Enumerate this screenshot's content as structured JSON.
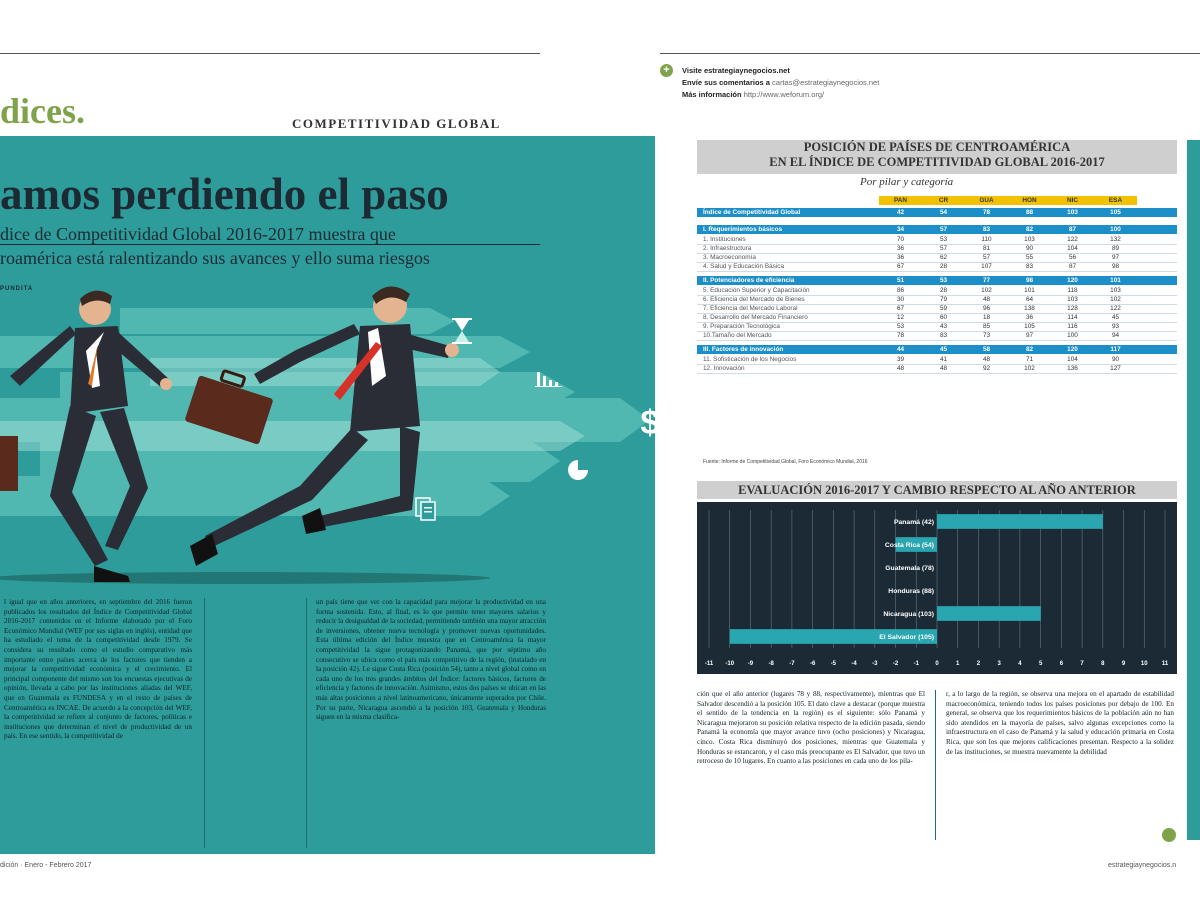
{
  "left_page": {
    "section_word": "dices.",
    "section_label": "COMPETITIVIDAD GLOBAL",
    "headline": "amos perdiendo el paso",
    "deck_line1": "dice de Competitividad Global 2016-2017 muestra que",
    "deck_line2": "roamérica está ralentizando sus avances y ello suma riesgos",
    "byline": "PUNDITA",
    "col1": "l igual que en años anteriores, en septiembre del 2016 fueron publicados los resultados del Índice de Competitividad Global 2016-2017 contenidos en el Informe elaborado por el Foro Económico Mundial (WEF por sus siglas en inglés), entidad que ha estudiado el tema de la competitividad desde 1979. Se considera su resultado como el estudio comparativo más importante entre países acerca de los factores que tienden a mejorar la competitividad económica y el crecimiento. El principal componente del mismo son los encuestas ejecutivas de opinión, llevada a cabo por las instituciones aliadas del WEF, que en Guatemala es FUNDESA y en el resto de países de Centroamérica es INCAE. De acuerdo a la concepción del WEF, la competitividad se refiere al conjunto de factores, políticas e instituciones que determinan el nivel de productividad de un país. En ese sentido, la competitividad de",
    "col2": "un país tiene que ver con la capacidad para mejorar la productividad en una forma sostenida. Esto, al final, es lo que permite tener mayores salarios y reducir la desigualdad de la sociedad, permitiendo también una mayor atracción de inversiones, obtener nueva tecnología y promover nuevas oportunidades. Esta última edición del Índice muestra que en Centroamérica la mayor competitividad la sigue protagonizando Panamá, que por séptimo año consecutivo se ubica como el país más competitivo de la región, (instalado en la posición 42). Le sigue Costa Rica (posición 54), tanto a nivel global como en cada uno de los tres grandes ámbitos del Índice: factores básicos, factores de eficiencia y factores de innovación. Asimismo, estos dos países se ubican en las más altas posiciones a nivel latinoamericano, únicamente superados por Chile. Por su parte, Nicaragua ascendió a la posición 103, Guatemala y Honduras siguen en la misma clasifica-",
    "footer": "dición · Enero - Febrero 2017"
  },
  "right_page": {
    "visit_label": "Visite estrategiaynegocios.net",
    "send_label": "Envíe sus comentarios a",
    "send_value": "cartas@estrategiaynegocios.net",
    "info_label": "Más información",
    "info_value": "http://www.weforum.org/",
    "table": {
      "title_line1": "POSICIÓN DE PAÍSES DE CENTROAMÉRICA",
      "title_line2": "EN EL ÍNDICE DE COMPETITIVIDAD GLOBAL 2016-2017",
      "subtitle": "Por pilar y categoría",
      "columns": [
        "PAN",
        "CR",
        "GUA",
        "HON",
        "NIC",
        "ESA"
      ],
      "index_row": {
        "label": "Índice de Competitividad Global",
        "values": [
          "42",
          "54",
          "78",
          "88",
          "103",
          "105"
        ]
      },
      "groups": [
        {
          "label": "I. Requerimientos básicos",
          "values": [
            "34",
            "57",
            "83",
            "82",
            "87",
            "100"
          ],
          "rows": [
            {
              "label": "1. Instituciones",
              "values": [
                "70",
                "53",
                "110",
                "103",
                "122",
                "132"
              ]
            },
            {
              "label": "2. Infraestructura",
              "values": [
                "36",
                "57",
                "81",
                "90",
                "104",
                "89"
              ]
            },
            {
              "label": "3. Macroeconomía",
              "values": [
                "36",
                "62",
                "57",
                "55",
                "56",
                "97"
              ]
            },
            {
              "label": "4. Salud y Educación Básica",
              "values": [
                "67",
                "28",
                "107",
                "83",
                "87",
                "98"
              ]
            }
          ]
        },
        {
          "label": "II. Potenciadores de eficiencia",
          "values": [
            "51",
            "53",
            "77",
            "98",
            "120",
            "101"
          ],
          "rows": [
            {
              "label": "5. Educación Superior y Capacitación",
              "values": [
                "86",
                "28",
                "102",
                "101",
                "118",
                "103"
              ]
            },
            {
              "label": "6. Eficiencia del Mercado de Bienes",
              "values": [
                "30",
                "79",
                "48",
                "64",
                "103",
                "102"
              ]
            },
            {
              "label": "7. Eficiencia del Mercado Laboral",
              "values": [
                "67",
                "59",
                "96",
                "138",
                "128",
                "122"
              ]
            },
            {
              "label": "8. Desarrollo del Mercado Financiero",
              "values": [
                "12",
                "60",
                "18",
                "36",
                "114",
                "45"
              ]
            },
            {
              "label": "9. Preparación Tecnológica",
              "values": [
                "53",
                "43",
                "85",
                "105",
                "116",
                "93"
              ]
            },
            {
              "label": "10.Tamaño del Mercado",
              "values": [
                "78",
                "83",
                "73",
                "97",
                "100",
                "94"
              ]
            }
          ]
        },
        {
          "label": "III. Factores de innovación",
          "values": [
            "44",
            "45",
            "58",
            "82",
            "120",
            "117"
          ],
          "rows": [
            {
              "label": "11. Sofisticación de los Negocios",
              "values": [
                "39",
                "41",
                "48",
                "71",
                "104",
                "90"
              ]
            },
            {
              "label": "12. Innovación",
              "values": [
                "48",
                "48",
                "92",
                "102",
                "136",
                "127"
              ]
            }
          ]
        }
      ],
      "source": "Fuente: Informe de Competitividad Global, Foro Económico Mundial, 2016"
    },
    "chart_title": "EVALUACIÓN 2016-2017 Y CAMBIO RESPECTO AL AÑO ANTERIOR",
    "col3": "ción que el año anterior (lugares 78 y 88, respectivamente), mientras que El Salvador descendió a la posición 105. El dato clave a destacar (porque muestra el sentido de la tendencia en la región) es el siguiente: sólo Panamá y Nicaragua mejoraron su posición relativa respecto de la edición pasada, siendo Panamá la economía que mayor avance tuvo (ocho posiciones) y Nicaragua, cinco. Costa Rica disminuyó dos posiciones, mientras que Guatemala y Honduras se estancaron, y el caso más preocupante es El Salvador, que tuvo un retroceso de 10 lugares. En cuanto a las posiciones en cada uno de los pila-",
    "col4": "r, a lo largo de la región, se observa una mejora en el apartado de estabilidad macroeconómica, teniendo todos los países posiciones por debajo de 100. En general, se observa que los requerimientos básicos de la población aún no han sido atendidos en la mayoría de países, salvo algunas excepciones como la infraestructura en el caso de Panamá y la salud y educación primaria en Costa Rica, que son los que mejores calificaciones presentan. Respecto a la solidez de las instituciones, se muestra nuevamente la debilidad",
    "footer": "estrategiaynegocios.n"
  },
  "chart_data": {
    "type": "bar",
    "orientation": "horizontal",
    "title": "EVALUACIÓN 2016-2017 Y CAMBIO RESPECTO AL AÑO ANTERIOR",
    "categories": [
      "Panamá (42)",
      "Costa Rica (54)",
      "Guatemala (78)",
      "Honduras (88)",
      "Nicaragua (103)",
      "El Salvador (105)"
    ],
    "values": [
      8,
      -2,
      0,
      0,
      5,
      -10
    ],
    "xlim": [
      -11,
      11
    ],
    "xticks": [
      "-11",
      "-10",
      "-9",
      "-8",
      "-7",
      "-6",
      "-5",
      "-4",
      "-3",
      "-2",
      "-1",
      "0",
      "1",
      "2",
      "3",
      "4",
      "5",
      "6",
      "7",
      "8",
      "9",
      "10",
      "11"
    ],
    "grid": true,
    "colors": {
      "bar": "#2aa6b0",
      "background": "#1c2a35",
      "grid": "#5b7a86"
    }
  }
}
